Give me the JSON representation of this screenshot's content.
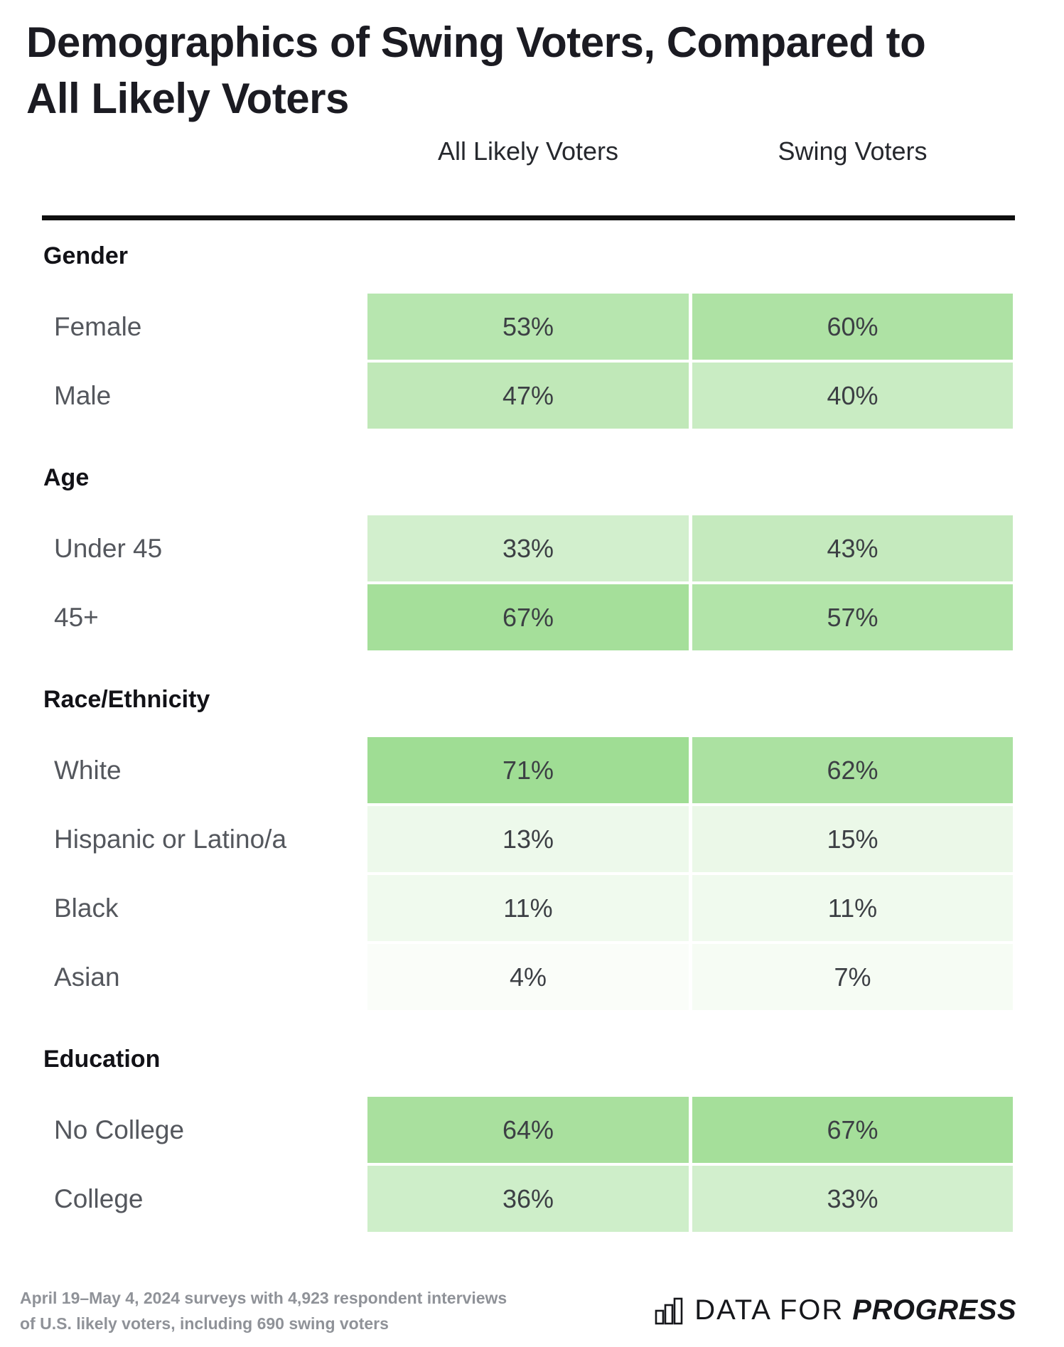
{
  "title": {
    "line1": "Demographics of Swing Voters, Compared to",
    "line2": "All Likely Voters"
  },
  "chart_data": {
    "type": "table",
    "title": "Demographics of Swing Voters, Compared to All Likely Voters",
    "columns": [
      "All Likely Voters",
      "Swing Voters"
    ],
    "value_format": "percent",
    "shading": {
      "description": "cell background interpolates white to full green proportional to value",
      "min_color": "#ffffff",
      "max_color": "#78cf68"
    },
    "sections": [
      {
        "label": "Gender",
        "rows": [
          {
            "label": "Female",
            "values": [
              53,
              60
            ]
          },
          {
            "label": "Male",
            "values": [
              47,
              40
            ]
          }
        ]
      },
      {
        "label": "Age",
        "rows": [
          {
            "label": "Under 45",
            "values": [
              33,
              43
            ]
          },
          {
            "label": "45+",
            "values": [
              67,
              57
            ]
          }
        ]
      },
      {
        "label": "Race/Ethnicity",
        "rows": [
          {
            "label": "White",
            "values": [
              71,
              62
            ]
          },
          {
            "label": "Hispanic or Latino/a",
            "values": [
              13,
              15
            ]
          },
          {
            "label": "Black",
            "values": [
              11,
              11
            ]
          },
          {
            "label": "Asian",
            "values": [
              4,
              7
            ]
          }
        ]
      },
      {
        "label": "Education",
        "rows": [
          {
            "label": "No College",
            "values": [
              64,
              67
            ]
          },
          {
            "label": "College",
            "values": [
              36,
              33
            ]
          }
        ]
      }
    ]
  },
  "footer": {
    "source_line1": "April 19–May 4, 2024 surveys with 4,923 respondent interviews",
    "source_line2": "of U.S. likely voters, including 690 swing voters"
  },
  "logo": {
    "prefix": "DATA FOR",
    "suffix": "PROGRESS",
    "icon": "bar-chart-icon"
  },
  "colors": {
    "cell_green_full": "#78cf68",
    "cell_min": "#ffffff",
    "rule": "#0f0f0f",
    "title_text": "#1b1b22",
    "label_text": "#54575d",
    "cell_text": "#3c3f44",
    "footer_text": "#8f9298"
  }
}
